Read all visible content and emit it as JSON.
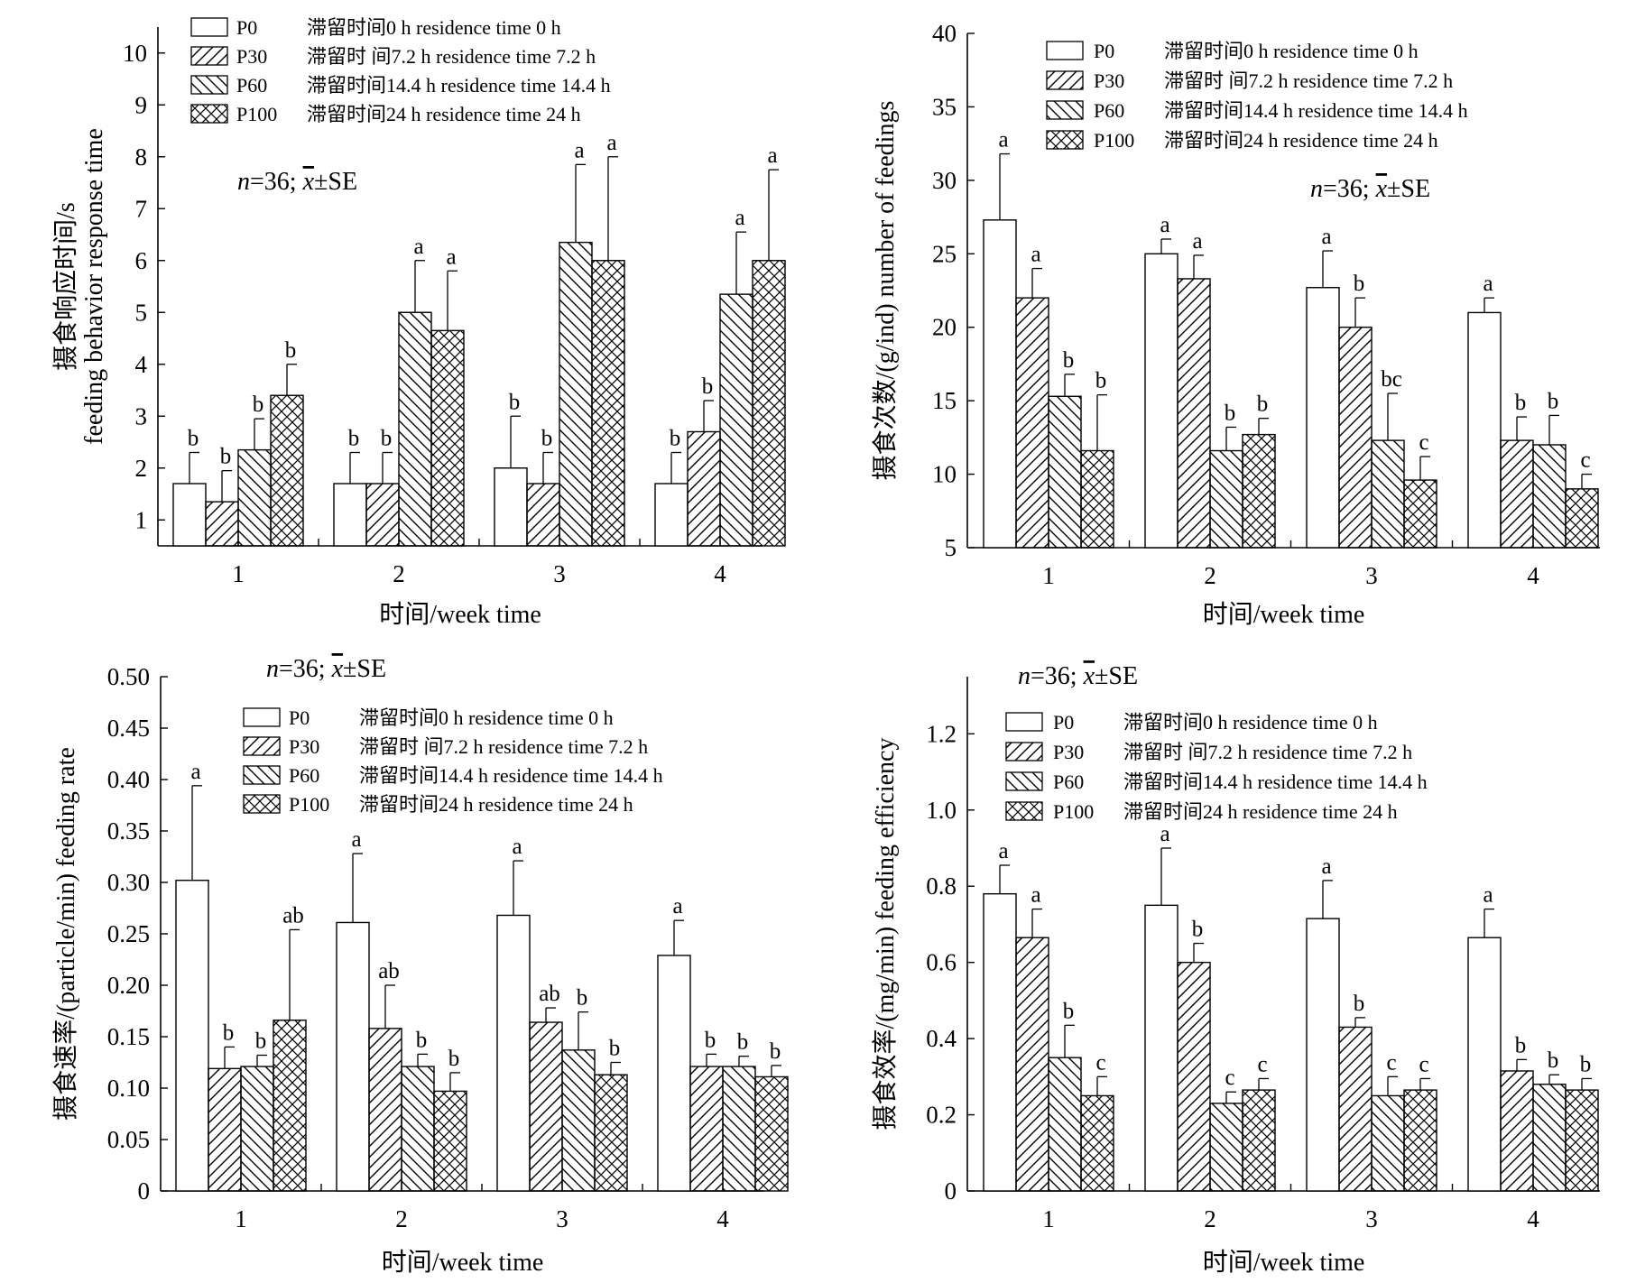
{
  "legend": [
    {
      "code": "P0",
      "desc": "滞留时间0 h residence time 0 h",
      "pattern": "none"
    },
    {
      "code": "P30",
      "desc": "滞留时 间7.2 h residence time 7.2 h",
      "pattern": "hatch-fwd"
    },
    {
      "code": "P60",
      "desc": "滞留时间14.4 h residence time 14.4 h",
      "pattern": "hatch-back"
    },
    {
      "code": "P100",
      "desc": "滞留时间24 h residence time 24 h",
      "pattern": "hatch-cross"
    }
  ],
  "annotation": {
    "n": "n",
    "rest": "=36;",
    "xbar": "x",
    "se": "±SE"
  },
  "chart_data": [
    {
      "type": "bar",
      "categories": [
        "1",
        "2",
        "3",
        "4"
      ],
      "xlabel": "时间/week time",
      "ylabel_lines": [
        "摄食响应时间/s",
        "feeding behavior response time"
      ],
      "ylim": [
        0.5,
        10.5
      ],
      "yticks": [
        "1",
        "2",
        "3",
        "4",
        "5",
        "6",
        "7",
        "8",
        "9",
        "10"
      ],
      "yticks_values": [
        1,
        2,
        3,
        4,
        5,
        6,
        7,
        8,
        9,
        10
      ],
      "legend_position": "top-left",
      "annotation_position": "upper-left",
      "series": [
        {
          "name": "P0",
          "values": [
            1.7,
            1.7,
            2.0,
            1.7
          ],
          "errors": [
            0.6,
            0.6,
            1.0,
            0.6
          ],
          "labels": [
            "b",
            "b",
            "b",
            "b"
          ]
        },
        {
          "name": "P30",
          "values": [
            1.35,
            1.7,
            1.7,
            2.7
          ],
          "errors": [
            0.6,
            0.6,
            0.6,
            0.6
          ],
          "labels": [
            "b",
            "b",
            "b",
            "b"
          ]
        },
        {
          "name": "P60",
          "values": [
            2.35,
            5.0,
            6.35,
            5.35
          ],
          "errors": [
            0.6,
            1.0,
            1.5,
            1.2
          ],
          "labels": [
            "b",
            "a",
            "a",
            "a"
          ]
        },
        {
          "name": "P100",
          "values": [
            3.4,
            4.65,
            6.0,
            6.0
          ],
          "errors": [
            0.6,
            1.15,
            2.0,
            1.75
          ],
          "labels": [
            "b",
            "a",
            "a",
            "a"
          ]
        }
      ]
    },
    {
      "type": "bar",
      "categories": [
        "1",
        "2",
        "3",
        "4"
      ],
      "xlabel": "时间/week time",
      "ylabel_lines": [
        "摄食次数/(g/ind) number of feedings"
      ],
      "ylim": [
        5,
        40
      ],
      "yticks": [
        "5",
        "10",
        "15",
        "20",
        "25",
        "30",
        "35",
        "40"
      ],
      "yticks_values": [
        5,
        10,
        15,
        20,
        25,
        30,
        35,
        40
      ],
      "legend_position": "top-right",
      "annotation_position": "upper-right",
      "series": [
        {
          "name": "P0",
          "values": [
            27.3,
            25.0,
            22.7,
            21.0
          ],
          "errors": [
            4.5,
            1.0,
            2.5,
            1.0
          ],
          "labels": [
            "a",
            "a",
            "a",
            "a"
          ]
        },
        {
          "name": "P30",
          "values": [
            22.0,
            23.3,
            20.0,
            12.3
          ],
          "errors": [
            2.0,
            1.6,
            2.0,
            1.6
          ],
          "labels": [
            "a",
            "a",
            "b",
            "b"
          ]
        },
        {
          "name": "P60",
          "values": [
            15.3,
            11.6,
            12.3,
            12.0
          ],
          "errors": [
            1.5,
            1.6,
            3.2,
            2.0
          ],
          "labels": [
            "b",
            "b",
            "bc",
            "b"
          ]
        },
        {
          "name": "P100",
          "values": [
            11.6,
            12.7,
            9.6,
            9.0
          ],
          "errors": [
            3.8,
            1.1,
            1.6,
            1.0
          ],
          "labels": [
            "b",
            "b",
            "c",
            "c"
          ]
        }
      ]
    },
    {
      "type": "bar",
      "categories": [
        "1",
        "2",
        "3",
        "4"
      ],
      "xlabel": "时间/week time",
      "ylabel_lines": [
        "摄食速率/(particle/min) feeding rate"
      ],
      "ylim": [
        0,
        0.5
      ],
      "yticks": [
        "0",
        "0.05",
        "0.10",
        "0.15",
        "0.20",
        "0.25",
        "0.30",
        "0.35",
        "0.40",
        "0.45",
        "0.50"
      ],
      "yticks_values": [
        0,
        0.05,
        0.1,
        0.15,
        0.2,
        0.25,
        0.3,
        0.35,
        0.4,
        0.45,
        0.5
      ],
      "legend_position": "top-right",
      "annotation_position": "top-left",
      "series": [
        {
          "name": "P0",
          "values": [
            0.302,
            0.261,
            0.268,
            0.229
          ],
          "errors": [
            0.092,
            0.067,
            0.053,
            0.034
          ],
          "labels": [
            "a",
            "a",
            "a",
            "a"
          ]
        },
        {
          "name": "P30",
          "values": [
            0.119,
            0.158,
            0.164,
            0.121
          ],
          "errors": [
            0.021,
            0.042,
            0.014,
            0.012
          ],
          "labels": [
            "b",
            "ab",
            "ab",
            "b"
          ]
        },
        {
          "name": "P60",
          "values": [
            0.121,
            0.121,
            0.137,
            0.121
          ],
          "errors": [
            0.011,
            0.012,
            0.037,
            0.01
          ],
          "labels": [
            "b",
            "b",
            "b",
            "b"
          ]
        },
        {
          "name": "P100",
          "values": [
            0.166,
            0.097,
            0.113,
            0.111
          ],
          "errors": [
            0.088,
            0.018,
            0.012,
            0.011
          ],
          "labels": [
            "ab",
            "b",
            "b",
            "b"
          ]
        }
      ]
    },
    {
      "type": "bar",
      "categories": [
        "1",
        "2",
        "3",
        "4"
      ],
      "xlabel": "时间/week time",
      "ylabel_lines": [
        "摄食效率/(mg/min) feeding efficiency"
      ],
      "ylim": [
        0,
        1.35
      ],
      "yticks": [
        "0",
        "0.2",
        "0.4",
        "0.6",
        "0.8",
        "1.0",
        "1.2"
      ],
      "yticks_values": [
        0,
        0.2,
        0.4,
        0.6,
        0.8,
        1.0,
        1.2
      ],
      "legend_position": "top-right",
      "annotation_position": "top-left",
      "series": [
        {
          "name": "P0",
          "values": [
            0.78,
            0.75,
            0.715,
            0.665
          ],
          "errors": [
            0.075,
            0.15,
            0.1,
            0.075
          ],
          "labels": [
            "a",
            "a",
            "a",
            "a"
          ]
        },
        {
          "name": "P30",
          "values": [
            0.665,
            0.6,
            0.43,
            0.315
          ],
          "errors": [
            0.075,
            0.05,
            0.025,
            0.03
          ],
          "labels": [
            "a",
            "b",
            "b",
            "b"
          ]
        },
        {
          "name": "P60",
          "values": [
            0.35,
            0.23,
            0.25,
            0.28
          ],
          "errors": [
            0.085,
            0.03,
            0.05,
            0.025
          ],
          "labels": [
            "b",
            "c",
            "c",
            "b"
          ]
        },
        {
          "name": "P100",
          "values": [
            0.25,
            0.265,
            0.265,
            0.265
          ],
          "errors": [
            0.05,
            0.03,
            0.03,
            0.03
          ],
          "labels": [
            "c",
            "c",
            "c",
            "b"
          ]
        }
      ]
    }
  ]
}
